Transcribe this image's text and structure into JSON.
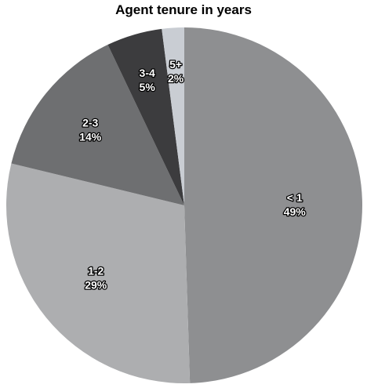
{
  "chart_data": {
    "type": "pie",
    "title": "Agent tenure in years",
    "slices": [
      {
        "label": "< 1",
        "value": 49,
        "value_label": "49%",
        "color": "#8e8f91"
      },
      {
        "label": "1-2",
        "value": 29,
        "value_label": "29%",
        "color": "#adaeb0"
      },
      {
        "label": "2-3",
        "value": 14,
        "value_label": "14%",
        "color": "#6e6f71"
      },
      {
        "label": "3-4",
        "value": 5,
        "value_label": "5%",
        "color": "#3c3c3e"
      },
      {
        "label": "5+",
        "value": 2,
        "value_label": "2%",
        "color": "#c9cdd3"
      }
    ],
    "start_angle_deg": 0,
    "direction": "clockwise"
  }
}
